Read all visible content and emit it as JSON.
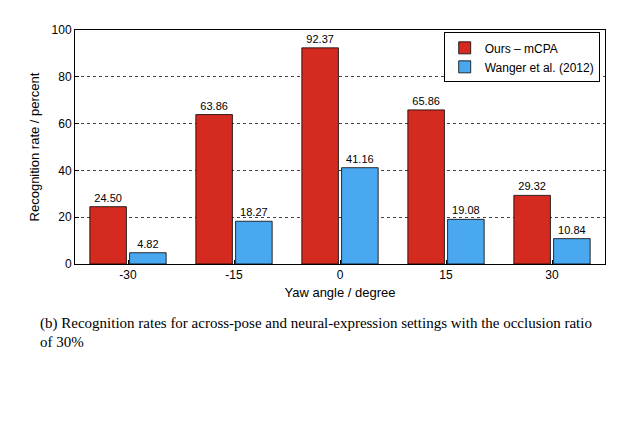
{
  "chart_data": {
    "type": "bar",
    "subtitle": "(b) Recognition rates for across-pose and neural-expression settings with the occlusion ratio of 30%",
    "x_label": "Yaw angle / degree",
    "y_label": "Recognition rate / percent",
    "categories": [
      "-30",
      "-15",
      "0",
      "15",
      "30"
    ],
    "series": [
      {
        "name": "Ours – mCPA",
        "color": "#d42a1f",
        "values": [
          24.5,
          63.86,
          92.37,
          65.86,
          29.32
        ],
        "value_labels": [
          "24.50",
          "63.86",
          "92.37",
          "65.86",
          "29.32"
        ]
      },
      {
        "name": "Wanger et al. (2012)",
        "color": "#4aa8f0",
        "values": [
          4.82,
          18.27,
          41.16,
          19.08,
          10.84
        ],
        "value_labels": [
          "4.82",
          "18.27",
          "41.16",
          "19.08",
          "10.84"
        ]
      }
    ],
    "ylim": [
      0,
      100
    ],
    "yticks": [
      0,
      20,
      40,
      60,
      80,
      100
    ],
    "grid": true,
    "legend": "top-right",
    "data_labels": true
  }
}
